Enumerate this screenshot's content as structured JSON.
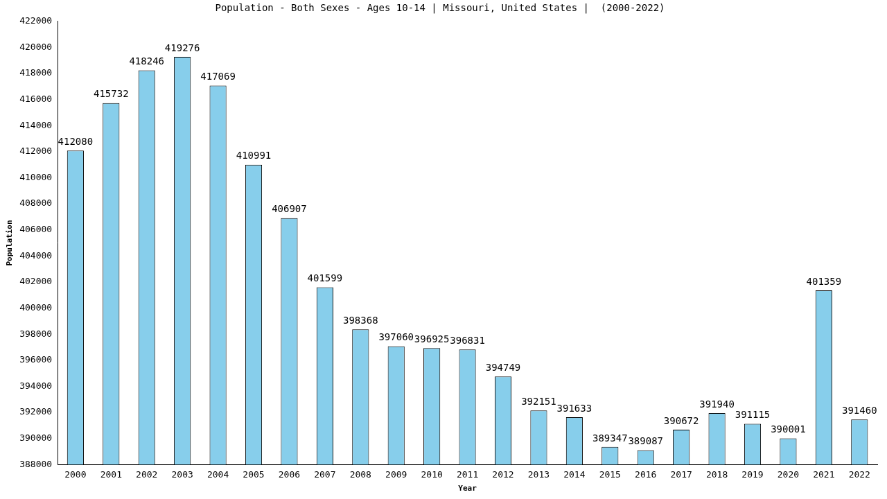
{
  "chart_data": {
    "type": "bar",
    "title": "Population - Both Sexes - Ages 10-14 | Missouri, United States |  (2000-2022)",
    "x_label": "Year",
    "y_label": "Population",
    "categories": [
      "2000",
      "2001",
      "2002",
      "2003",
      "2004",
      "2005",
      "2006",
      "2007",
      "2008",
      "2009",
      "2010",
      "2011",
      "2012",
      "2013",
      "2014",
      "2015",
      "2016",
      "2017",
      "2018",
      "2019",
      "2020",
      "2021",
      "2022"
    ],
    "values": [
      412080,
      415732,
      418246,
      419276,
      417069,
      410991,
      406907,
      401599,
      398368,
      397060,
      396925,
      396831,
      394749,
      392151,
      391633,
      389347,
      389087,
      390672,
      391940,
      391115,
      390001,
      401359,
      391460
    ],
    "color": "#87ceeb",
    "ylim": [
      388000,
      422000
    ],
    "yticks": [
      388000,
      390000,
      392000,
      394000,
      396000,
      398000,
      400000,
      402000,
      404000,
      406000,
      408000,
      410000,
      412000,
      414000,
      416000,
      418000,
      420000,
      422000
    ],
    "grid": false,
    "data_labels": true
  }
}
